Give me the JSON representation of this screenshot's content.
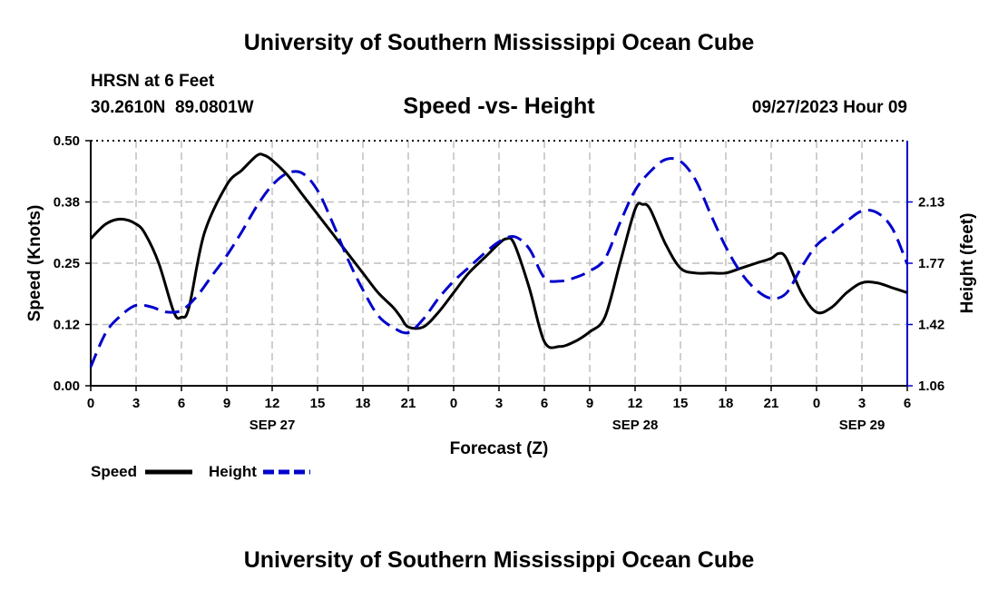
{
  "header": {
    "title": "University of Southern Mississippi Ocean Cube",
    "station": "HRSN at 6 Feet",
    "coords": "30.2610N  89.0801W",
    "date": "09/27/2023 Hour 09",
    "footer": "University of Southern Mississippi Ocean Cube"
  },
  "chart_data": {
    "type": "line",
    "title": "Speed -vs- Height",
    "xlabel": "Forecast (Z)",
    "ylabel": "Speed (Knots)",
    "y2label": "Height (feet)",
    "xlim": [
      0,
      54
    ],
    "ylim": [
      0,
      0.5
    ],
    "y2lim": [
      1.06,
      2.49
    ],
    "yticks": [
      "0.00",
      "0.12",
      "0.25",
      "0.38",
      "0.50"
    ],
    "y2ticks": [
      "1.06",
      "1.42",
      "1.77",
      "2.13"
    ],
    "xtick_labels": [
      "0",
      "3",
      "6",
      "9",
      "12",
      "15",
      "18",
      "21",
      "0",
      "3",
      "6",
      "9",
      "12",
      "15",
      "18",
      "21",
      "0",
      "3",
      "6"
    ],
    "date_labels": [
      {
        "text": "SEP 27",
        "x": 12
      },
      {
        "text": "SEP 28",
        "x": 36
      },
      {
        "text": "SEP 29",
        "x": 51
      }
    ],
    "grid": true,
    "legend": "bottom-left",
    "colors": {
      "speed": "#000000",
      "height": "#0000cc"
    },
    "series": [
      {
        "name": "Speed",
        "axis": "left",
        "style": "solid",
        "x": [
          0,
          1,
          2,
          3,
          3.6,
          4.5,
          5.5,
          6,
          6.5,
          7.5,
          9,
          10,
          11,
          11.5,
          12,
          13,
          14,
          15,
          16,
          17,
          18,
          19,
          20,
          20.5,
          21,
          22,
          23,
          24,
          25,
          26,
          27,
          27.5,
          28,
          29,
          30,
          31,
          32,
          33,
          34,
          35,
          36,
          36.5,
          37,
          38,
          39,
          40,
          41,
          42,
          43,
          44,
          45,
          45.5,
          46,
          47,
          48,
          49,
          50,
          51,
          52,
          53,
          54
        ],
        "y": [
          0.3,
          0.33,
          0.34,
          0.33,
          0.31,
          0.25,
          0.15,
          0.14,
          0.16,
          0.31,
          0.41,
          0.44,
          0.47,
          0.47,
          0.46,
          0.43,
          0.39,
          0.35,
          0.31,
          0.27,
          0.23,
          0.19,
          0.16,
          0.14,
          0.12,
          0.12,
          0.15,
          0.19,
          0.23,
          0.26,
          0.29,
          0.3,
          0.29,
          0.2,
          0.09,
          0.08,
          0.09,
          0.11,
          0.14,
          0.25,
          0.36,
          0.37,
          0.36,
          0.29,
          0.24,
          0.23,
          0.23,
          0.23,
          0.24,
          0.25,
          0.26,
          0.27,
          0.26,
          0.19,
          0.15,
          0.16,
          0.19,
          0.21,
          0.21,
          0.2,
          0.19
        ]
      },
      {
        "name": "Height",
        "axis": "right",
        "style": "dashed",
        "x": [
          0,
          1,
          2,
          3,
          4,
          5,
          6,
          7,
          8,
          9,
          10,
          11,
          12,
          13,
          14,
          15,
          16,
          17,
          18,
          19,
          20,
          21,
          22,
          23,
          24,
          25,
          26,
          27,
          28,
          29,
          30,
          31,
          32,
          33,
          34,
          35,
          36,
          37,
          38,
          39,
          40,
          41,
          42,
          43,
          44,
          45,
          46,
          47,
          48,
          49,
          50,
          51,
          52,
          53,
          54
        ],
        "y": [
          1.17,
          1.37,
          1.47,
          1.53,
          1.52,
          1.49,
          1.5,
          1.58,
          1.7,
          1.82,
          1.96,
          2.11,
          2.23,
          2.3,
          2.3,
          2.2,
          2.01,
          1.8,
          1.62,
          1.47,
          1.4,
          1.37,
          1.45,
          1.57,
          1.67,
          1.75,
          1.83,
          1.9,
          1.93,
          1.86,
          1.69,
          1.67,
          1.69,
          1.73,
          1.8,
          2.01,
          2.2,
          2.31,
          2.38,
          2.37,
          2.26,
          2.06,
          1.87,
          1.72,
          1.62,
          1.57,
          1.6,
          1.75,
          1.88,
          1.95,
          2.02,
          2.08,
          2.07,
          1.98,
          1.77
        ]
      }
    ]
  }
}
